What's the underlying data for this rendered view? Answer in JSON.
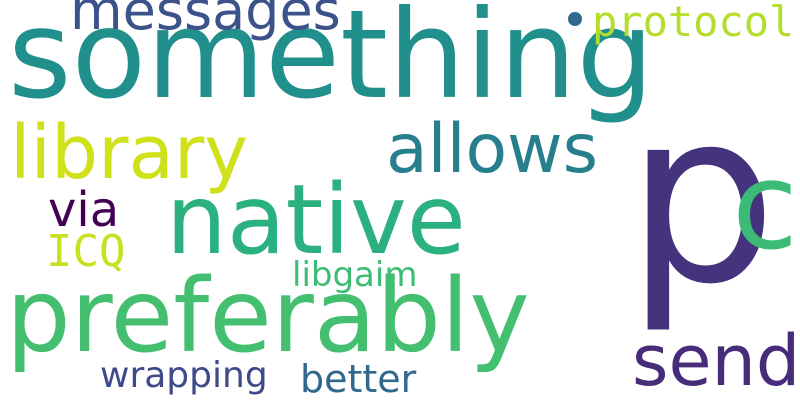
{
  "words": [
    {
      "text": "something",
      "color": "#21908d"
    },
    {
      "text": "p",
      "color": "#46337e"
    },
    {
      "text": "preferably",
      "color": "#44bf70"
    },
    {
      "text": "native",
      "color": "#2bb07f"
    },
    {
      "text": "library",
      "color": "#d0e11c"
    },
    {
      "text": "allows",
      "color": "#277f8e"
    },
    {
      "text": "c",
      "color": "#3bbb75"
    },
    {
      "text": "send",
      "color": "#472c7a"
    },
    {
      "text": "messages",
      "color": "#3b528b"
    },
    {
      "text": "protocol",
      "color": "#b5de2b"
    },
    {
      "text": "via",
      "color": "#440154"
    },
    {
      "text": "ICQ",
      "color": "#c8e020"
    },
    {
      "text": "libgaim",
      "color": "#3dbc74"
    },
    {
      "text": "wrapping",
      "color": "#3e4a89"
    },
    {
      "text": "better",
      "color": "#31688e"
    }
  ],
  "dot_color": "#31688e"
}
